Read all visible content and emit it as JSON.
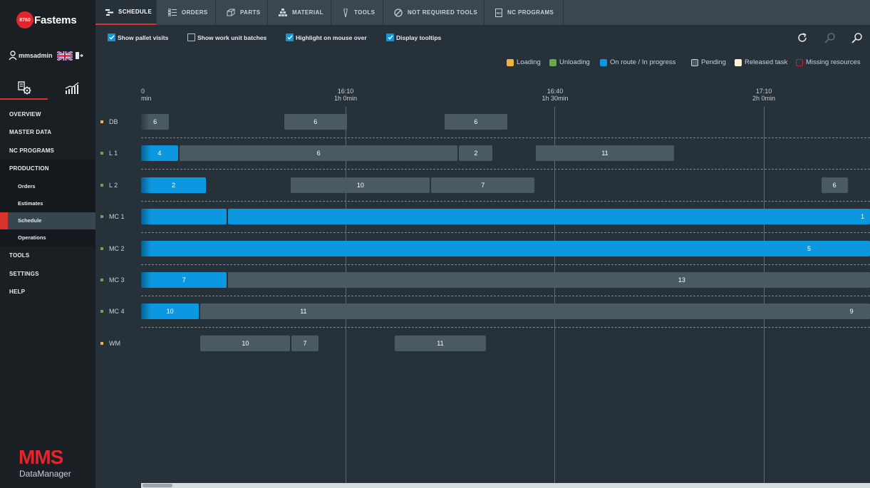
{
  "app": {
    "badge": "8760",
    "brand": "Fastems",
    "user": "mmsadmin",
    "footer_brand": "MMS",
    "footer_sub": "DataManager"
  },
  "sidebar": {
    "items": [
      {
        "label": "OVERVIEW"
      },
      {
        "label": "MASTER DATA"
      },
      {
        "label": "NC PROGRAMS"
      },
      {
        "label": "PRODUCTION"
      },
      {
        "label": "Orders"
      },
      {
        "label": "Estimates"
      },
      {
        "label": "Schedule",
        "active": true
      },
      {
        "label": "Operations"
      },
      {
        "label": "TOOLS"
      },
      {
        "label": "SETTINGS"
      },
      {
        "label": "HELP"
      }
    ]
  },
  "tabs": [
    {
      "label": "SCHEDULE",
      "icon": "schedule-icon",
      "active": true
    },
    {
      "label": "ORDERS",
      "icon": "orders-list-icon"
    },
    {
      "label": "PARTS",
      "icon": "parts-icon"
    },
    {
      "label": "MATERIAL",
      "icon": "material-pyramid-icon"
    },
    {
      "label": "TOOLS",
      "icon": "tool-icon"
    },
    {
      "label": "NOT REQUIRED TOOLS",
      "icon": "prohibited-icon"
    },
    {
      "label": "NC PROGRAMS",
      "icon": "nc-file-icon"
    }
  ],
  "options": [
    {
      "label": "Show pallet visits",
      "checked": true
    },
    {
      "label": "Show work unit batches",
      "checked": false
    },
    {
      "label": "Highlight on mouse over",
      "checked": true
    },
    {
      "label": "Display tooltips",
      "checked": true
    }
  ],
  "legend": [
    {
      "label": "Loading",
      "color": "#f2b33d"
    },
    {
      "label": "Unloading",
      "color": "#6aa84f"
    },
    {
      "label": "On route / In progress",
      "color": "#0b98e0"
    },
    {
      "label": "Pending",
      "color": "#4b5a62"
    },
    {
      "label": "Released task",
      "color": "#fff3cf"
    },
    {
      "label": "Missing resources",
      "color": "#c0223a"
    }
  ],
  "timeline": {
    "ticks": [
      {
        "time": "0",
        "elapsed": "min"
      },
      {
        "time": "16:10",
        "elapsed": "1h 0min"
      },
      {
        "time": "16:40",
        "elapsed": "1h 30min"
      },
      {
        "time": "17:10",
        "elapsed": "2h 0min"
      }
    ]
  },
  "rows": [
    {
      "name": "DB",
      "dot": "#f2b33d",
      "tasks": [
        {
          "label": "6",
          "start_min": 0,
          "end_min": 4,
          "status": "pending"
        },
        {
          "label": "6",
          "start_min": 20.5,
          "end_min": 29.5,
          "status": "pending"
        },
        {
          "label": "6",
          "start_min": 43.5,
          "end_min": 52.5,
          "status": "pending"
        }
      ]
    },
    {
      "name": "L 1",
      "dot": "#6aa84f",
      "tasks": [
        {
          "label": "4",
          "start_min": 0,
          "end_min": 5.3,
          "status": "progress"
        },
        {
          "label": "6",
          "start_min": 5.5,
          "end_min": 45.4,
          "status": "pending"
        },
        {
          "label": "2",
          "start_min": 45.6,
          "end_min": 50.4,
          "status": "pending"
        },
        {
          "label": "11",
          "start_min": 56.6,
          "end_min": 76.4,
          "status": "pending"
        }
      ]
    },
    {
      "name": "L 2",
      "dot": "#6aa84f",
      "tasks": [
        {
          "label": "2",
          "start_min": 0,
          "end_min": 9.3,
          "status": "progress"
        },
        {
          "label": "10",
          "start_min": 21.5,
          "end_min": 41.4,
          "status": "pending"
        },
        {
          "label": "7",
          "start_min": 41.6,
          "end_min": 56.4,
          "status": "pending"
        },
        {
          "label": "6",
          "start_min": 97.5,
          "end_min": 101.3,
          "status": "pending"
        }
      ]
    },
    {
      "name": "MC 1",
      "dot": "#6aa84f",
      "tasks": [
        {
          "label": "",
          "start_min": 0,
          "end_min": 12.3,
          "status": "progress"
        },
        {
          "label": "1",
          "start_min": 12.5,
          "end_min": 125,
          "status": "progress",
          "label_align": "right"
        }
      ]
    },
    {
      "name": "MC 2",
      "dot": "#6aa84f",
      "tasks": [
        {
          "label": "5",
          "start_min": 0,
          "end_min": 125,
          "status": "progress",
          "label_align": "split",
          "label_at_min": 95.5
        }
      ]
    },
    {
      "name": "MC 3",
      "dot": "#6aa84f",
      "tasks": [
        {
          "label": "7",
          "start_min": 0,
          "end_min": 12.3,
          "status": "progress"
        },
        {
          "label": "13",
          "start_min": 12.5,
          "end_min": 125,
          "status": "pending",
          "label_align": "split",
          "label_at_min": 77
        }
      ]
    },
    {
      "name": "MC 4",
      "dot": "#6aa84f",
      "tasks": [
        {
          "label": "10",
          "start_min": 0,
          "end_min": 8.3,
          "status": "progress"
        },
        {
          "label": "11",
          "start_min": 8.5,
          "end_min": 125,
          "status": "pending",
          "label_align": "split",
          "label_at_min": 22.8,
          "label2": "9",
          "label2_at_min": 101.6
        }
      ]
    },
    {
      "name": "WM",
      "dot": "#f2b33d",
      "tasks": [
        {
          "label": "10",
          "start_min": 8.5,
          "end_min": 21.4,
          "status": "pending"
        },
        {
          "label": "7",
          "start_min": 21.6,
          "end_min": 25.4,
          "status": "pending"
        },
        {
          "label": "11",
          "start_min": 36.4,
          "end_min": 49.4,
          "status": "pending"
        }
      ]
    }
  ]
}
